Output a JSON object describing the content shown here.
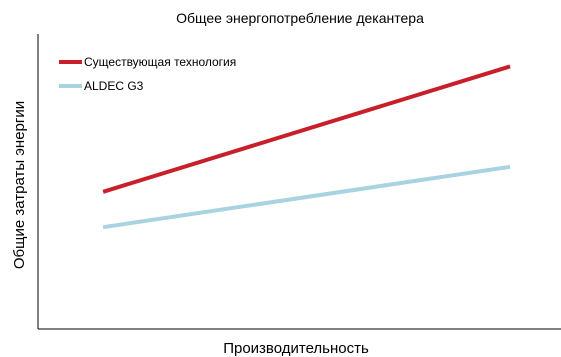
{
  "chart_data": {
    "type": "line",
    "title": "Общее энергопотребление декантера",
    "xlabel": "Производительность",
    "ylabel": "Общие затраты энергии",
    "x": [
      0,
      1
    ],
    "xlim": [
      -0.16,
      1.13
    ],
    "ylim": [
      0,
      1
    ],
    "grid": false,
    "legend_position": "top-left",
    "series": [
      {
        "name": "Существующая технология",
        "color": "#c8202a",
        "values": [
          0.465,
          0.89
        ]
      },
      {
        "name": "ALDEC G3",
        "color": "#a9d3e1",
        "values": [
          0.345,
          0.55
        ]
      }
    ]
  }
}
